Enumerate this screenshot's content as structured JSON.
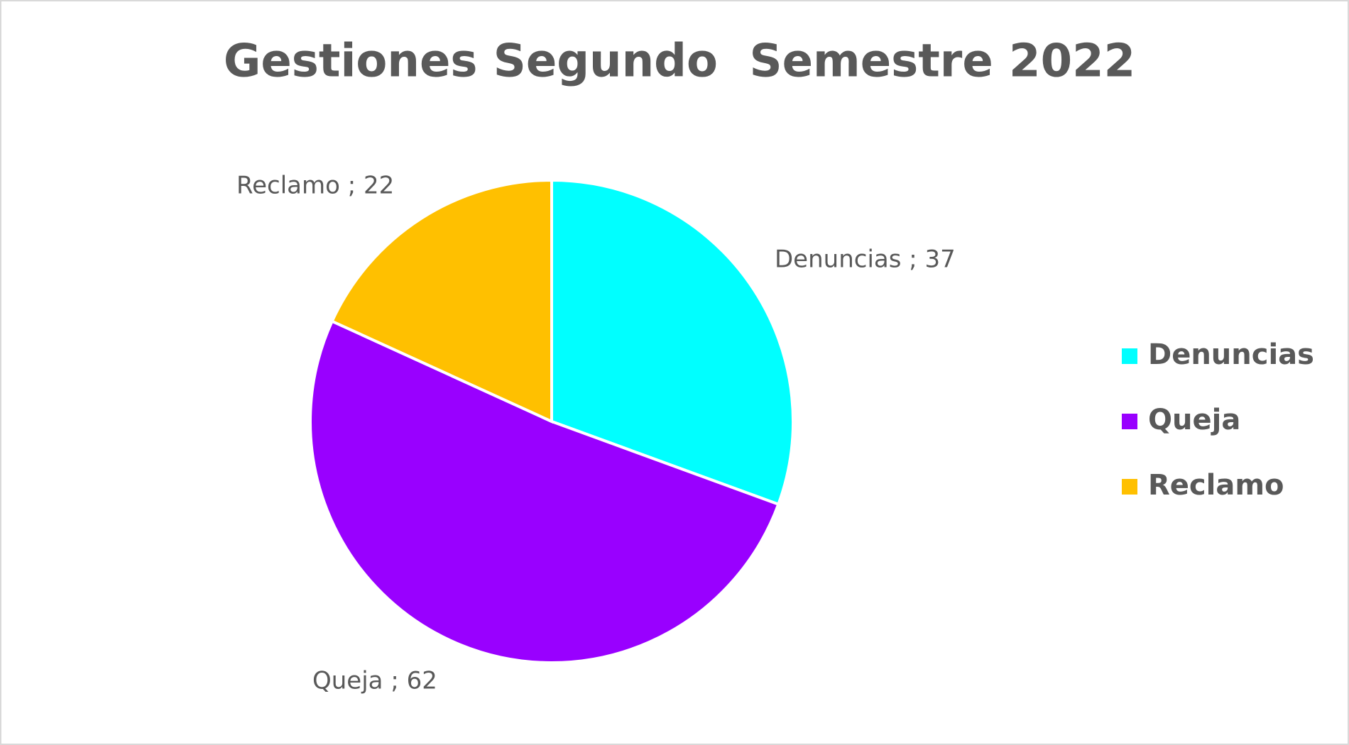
{
  "chart_data": {
    "type": "pie",
    "title": "Gestiones Segundo  Semestre 2022",
    "categories": [
      "Denuncias",
      "Queja",
      "Reclamo"
    ],
    "values": [
      37,
      62,
      22
    ],
    "value_labels": [
      "Denuncias ; 37",
      "Queja ; 62",
      "Reclamo ; 22"
    ],
    "colors": [
      "#00ffff",
      "#9900ff",
      "#ffc000"
    ],
    "legend": "right"
  }
}
